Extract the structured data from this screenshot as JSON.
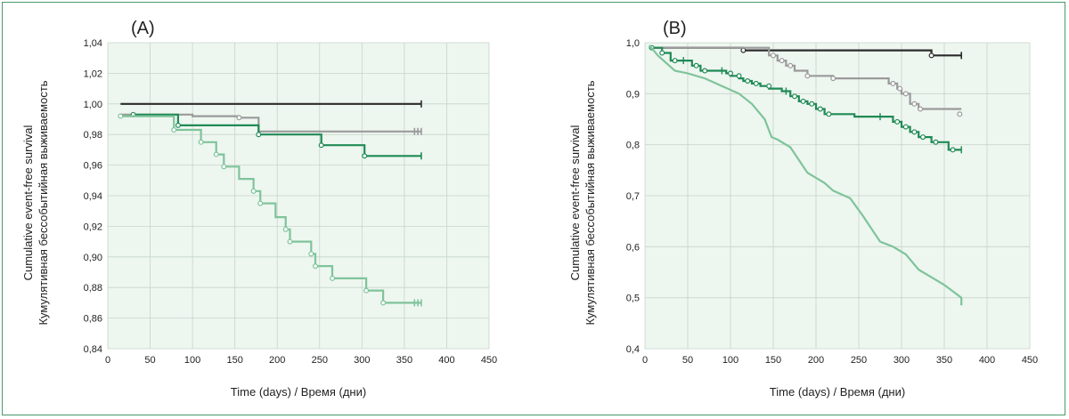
{
  "chart_data": [
    {
      "type": "line",
      "panel_label": "(A)",
      "xlabel": "Time (days) / Время (дни)",
      "ylabel": [
        "Cumulative event-free survival",
        "Кумулятивная бессобытийная выживаемость"
      ],
      "xlim": [
        0,
        450
      ],
      "ylim": [
        0.84,
        1.04
      ],
      "x_ticks": [
        0,
        50,
        100,
        150,
        200,
        250,
        300,
        350,
        400,
        450
      ],
      "y_ticks": [
        "0,84",
        "0,86",
        "0,88",
        "0,90",
        "0,92",
        "0,94",
        "0,96",
        "0,98",
        "1,00",
        "1,02",
        "1,04"
      ],
      "grid": true,
      "series": [
        {
          "color": "#2b2b2b",
          "steps": [
            [
              15,
              1.0
            ],
            [
              370,
              1.0
            ]
          ],
          "censored": [],
          "end_marks": [
            370
          ]
        },
        {
          "color": "#9a9a9a",
          "steps": [
            [
              15,
              0.993
            ],
            [
              100,
              0.993
            ],
            [
              100,
              0.992
            ],
            [
              155,
              0.992
            ],
            [
              155,
              0.991
            ],
            [
              178,
              0.991
            ],
            [
              178,
              0.982
            ],
            [
              370,
              0.982
            ]
          ],
          "censored": [
            [
              155,
              0.991
            ]
          ],
          "end_marks": [
            362,
            366,
            370
          ]
        },
        {
          "color": "#1f8a55",
          "steps": [
            [
              30,
              0.993
            ],
            [
              83,
              0.993
            ],
            [
              83,
              0.986
            ],
            [
              178,
              0.986
            ],
            [
              178,
              0.98
            ],
            [
              252,
              0.98
            ],
            [
              252,
              0.973
            ],
            [
              303,
              0.973
            ],
            [
              303,
              0.966
            ],
            [
              370,
              0.966
            ]
          ],
          "censored": [
            [
              30,
              0.993
            ],
            [
              83,
              0.986
            ],
            [
              178,
              0.98
            ],
            [
              252,
              0.973
            ],
            [
              303,
              0.966
            ]
          ],
          "end_marks": [
            370
          ]
        },
        {
          "color": "#7ec49a",
          "steps": [
            [
              15,
              0.992
            ],
            [
              78,
              0.992
            ],
            [
              78,
              0.983
            ],
            [
              110,
              0.983
            ],
            [
              110,
              0.975
            ],
            [
              128,
              0.975
            ],
            [
              128,
              0.967
            ],
            [
              137,
              0.967
            ],
            [
              137,
              0.959
            ],
            [
              155,
              0.959
            ],
            [
              155,
              0.951
            ],
            [
              172,
              0.951
            ],
            [
              172,
              0.943
            ],
            [
              180,
              0.943
            ],
            [
              180,
              0.935
            ],
            [
              198,
              0.935
            ],
            [
              198,
              0.926
            ],
            [
              210,
              0.926
            ],
            [
              210,
              0.918
            ],
            [
              215,
              0.918
            ],
            [
              215,
              0.91
            ],
            [
              240,
              0.91
            ],
            [
              240,
              0.902
            ],
            [
              245,
              0.902
            ],
            [
              245,
              0.894
            ],
            [
              265,
              0.894
            ],
            [
              265,
              0.886
            ],
            [
              305,
              0.886
            ],
            [
              305,
              0.878
            ],
            [
              325,
              0.878
            ],
            [
              325,
              0.87
            ],
            [
              370,
              0.87
            ]
          ],
          "censored": [
            [
              15,
              0.992
            ],
            [
              78,
              0.983
            ],
            [
              110,
              0.975
            ],
            [
              128,
              0.967
            ],
            [
              137,
              0.959
            ],
            [
              172,
              0.943
            ],
            [
              180,
              0.935
            ],
            [
              210,
              0.918
            ],
            [
              215,
              0.91
            ],
            [
              240,
              0.902
            ],
            [
              245,
              0.894
            ],
            [
              265,
              0.886
            ],
            [
              305,
              0.878
            ],
            [
              325,
              0.87
            ]
          ],
          "end_marks": [
            362,
            366,
            370
          ]
        }
      ]
    },
    {
      "type": "line",
      "panel_label": "(B)",
      "xlabel": "Time (days) / Время (дни)",
      "ylabel": [
        "Cumulative event-free survival",
        "Кумулятивная бессобытийная выживаемость"
      ],
      "xlim": [
        0,
        450
      ],
      "ylim": [
        0.4,
        1.0
      ],
      "x_ticks": [
        0,
        50,
        100,
        150,
        200,
        250,
        300,
        350,
        400,
        450
      ],
      "y_ticks": [
        "0,4",
        "0,5",
        "0,6",
        "0,7",
        "0,8",
        "0,9",
        "1,0"
      ],
      "grid": true,
      "series": [
        {
          "color": "#2b2b2b",
          "steps": [
            [
              5,
              0.99
            ],
            [
              115,
              0.99
            ],
            [
              115,
              0.985
            ],
            [
              335,
              0.985
            ],
            [
              335,
              0.975
            ],
            [
              370,
              0.975
            ]
          ],
          "censored": [
            [
              115,
              0.985
            ],
            [
              335,
              0.975
            ]
          ],
          "end_marks": [
            370
          ]
        },
        {
          "color": "#9a9a9a",
          "steps": [
            [
              5,
              0.99
            ],
            [
              145,
              0.99
            ],
            [
              145,
              0.975
            ],
            [
              155,
              0.975
            ],
            [
              155,
              0.965
            ],
            [
              165,
              0.965
            ],
            [
              165,
              0.955
            ],
            [
              175,
              0.955
            ],
            [
              175,
              0.945
            ],
            [
              190,
              0.945
            ],
            [
              190,
              0.935
            ],
            [
              220,
              0.935
            ],
            [
              220,
              0.93
            ],
            [
              285,
              0.93
            ],
            [
              285,
              0.92
            ],
            [
              295,
              0.92
            ],
            [
              295,
              0.91
            ],
            [
              300,
              0.91
            ],
            [
              300,
              0.9
            ],
            [
              310,
              0.9
            ],
            [
              310,
              0.88
            ],
            [
              320,
              0.88
            ],
            [
              320,
              0.87
            ],
            [
              370,
              0.87
            ]
          ],
          "censored": [
            [
              150,
              0.975
            ],
            [
              160,
              0.965
            ],
            [
              170,
              0.955
            ],
            [
              190,
              0.935
            ],
            [
              220,
              0.93
            ],
            [
              290,
              0.92
            ],
            [
              298,
              0.91
            ],
            [
              305,
              0.9
            ],
            [
              315,
              0.88
            ],
            [
              322,
              0.87
            ],
            [
              368,
              0.86
            ]
          ],
          "end_marks": []
        },
        {
          "color": "#1f8a55",
          "steps": [
            [
              5,
              0.99
            ],
            [
              20,
              0.99
            ],
            [
              20,
              0.98
            ],
            [
              30,
              0.98
            ],
            [
              30,
              0.965
            ],
            [
              55,
              0.965
            ],
            [
              55,
              0.955
            ],
            [
              65,
              0.955
            ],
            [
              65,
              0.945
            ],
            [
              95,
              0.945
            ],
            [
              95,
              0.94
            ],
            [
              100,
              0.94
            ],
            [
              100,
              0.935
            ],
            [
              110,
              0.935
            ],
            [
              110,
              0.93
            ],
            [
              115,
              0.93
            ],
            [
              115,
              0.925
            ],
            [
              125,
              0.925
            ],
            [
              125,
              0.92
            ],
            [
              135,
              0.92
            ],
            [
              135,
              0.915
            ],
            [
              145,
              0.915
            ],
            [
              145,
              0.91
            ],
            [
              160,
              0.91
            ],
            [
              160,
              0.905
            ],
            [
              170,
              0.905
            ],
            [
              170,
              0.895
            ],
            [
              180,
              0.895
            ],
            [
              180,
              0.885
            ],
            [
              190,
              0.885
            ],
            [
              190,
              0.88
            ],
            [
              200,
              0.88
            ],
            [
              200,
              0.87
            ],
            [
              210,
              0.87
            ],
            [
              210,
              0.86
            ],
            [
              245,
              0.86
            ],
            [
              245,
              0.855
            ],
            [
              290,
              0.855
            ],
            [
              290,
              0.845
            ],
            [
              300,
              0.845
            ],
            [
              300,
              0.835
            ],
            [
              310,
              0.835
            ],
            [
              310,
              0.825
            ],
            [
              320,
              0.825
            ],
            [
              320,
              0.815
            ],
            [
              335,
              0.815
            ],
            [
              335,
              0.805
            ],
            [
              355,
              0.805
            ],
            [
              355,
              0.79
            ],
            [
              370,
              0.79
            ]
          ],
          "censored": [
            [
              8,
              0.99
            ],
            [
              20,
              0.98
            ],
            [
              35,
              0.965
            ],
            [
              60,
              0.955
            ],
            [
              70,
              0.945
            ],
            [
              100,
              0.94
            ],
            [
              110,
              0.935
            ],
            [
              120,
              0.925
            ],
            [
              130,
              0.92
            ],
            [
              145,
              0.915
            ],
            [
              175,
              0.895
            ],
            [
              185,
              0.885
            ],
            [
              195,
              0.88
            ],
            [
              205,
              0.87
            ],
            [
              215,
              0.86
            ],
            [
              295,
              0.845
            ],
            [
              305,
              0.835
            ],
            [
              315,
              0.825
            ],
            [
              325,
              0.815
            ],
            [
              340,
              0.805
            ],
            [
              360,
              0.79
            ]
          ],
          "plus_marks": [
            [
              45,
              0.965
            ],
            [
              90,
              0.945
            ],
            [
              165,
              0.905
            ],
            [
              275,
              0.855
            ],
            [
              370,
              0.79
            ]
          ],
          "end_marks": []
        },
        {
          "color": "#7ec49a",
          "smooth": true,
          "points": [
            [
              5,
              0.995
            ],
            [
              10,
              0.985
            ],
            [
              15,
              0.975
            ],
            [
              25,
              0.96
            ],
            [
              35,
              0.945
            ],
            [
              50,
              0.94
            ],
            [
              70,
              0.93
            ],
            [
              90,
              0.915
            ],
            [
              110,
              0.9
            ],
            [
              125,
              0.88
            ],
            [
              140,
              0.85
            ],
            [
              148,
              0.815
            ],
            [
              155,
              0.81
            ],
            [
              170,
              0.795
            ],
            [
              180,
              0.77
            ],
            [
              190,
              0.745
            ],
            [
              200,
              0.735
            ],
            [
              210,
              0.725
            ],
            [
              220,
              0.71
            ],
            [
              240,
              0.695
            ],
            [
              255,
              0.66
            ],
            [
              265,
              0.635
            ],
            [
              275,
              0.61
            ],
            [
              290,
              0.6
            ],
            [
              305,
              0.585
            ],
            [
              320,
              0.555
            ],
            [
              335,
              0.54
            ],
            [
              350,
              0.525
            ],
            [
              362,
              0.51
            ],
            [
              370,
              0.5
            ],
            [
              370,
              0.485
            ]
          ],
          "censored": [],
          "end_marks": []
        }
      ]
    }
  ]
}
